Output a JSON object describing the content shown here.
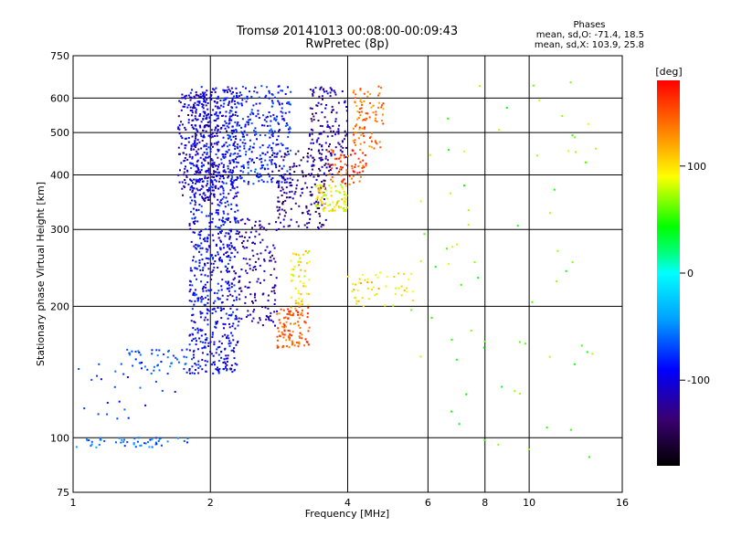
{
  "chart_data": {
    "type": "scatter",
    "title_line1": "Tromsø 20141013 00:08:00-00:09:43",
    "title_line2": "RwPretec (8p)",
    "xlabel": "Frequency [MHz]",
    "ylabel": "Stationary phase Virtual Height [km]",
    "x_scale": "log",
    "y_scale": "log",
    "xlim": [
      1,
      16
    ],
    "ylim": [
      75,
      750
    ],
    "x_ticks": [
      1,
      2,
      4,
      6,
      8,
      10,
      16
    ],
    "y_ticks": [
      75,
      100,
      200,
      300,
      400,
      500,
      600,
      750
    ],
    "grid": true,
    "stats": {
      "heading": "Phases",
      "line_o": "mean, sd,O: -71.4, 18.5",
      "line_x": "mean, sd,X: 103.9, 25.8"
    },
    "colorbar": {
      "label": "[deg]",
      "ticks": [
        100,
        0,
        -100
      ],
      "range": [
        -180,
        180
      ]
    },
    "series": [
      {
        "clusters": [
          {
            "x": [
              1.8,
              2.3
            ],
            "y": [
              140,
              640
            ],
            "phase": -95,
            "n": 900
          },
          {
            "x": [
              1.7,
              2.1
            ],
            "y": [
              350,
              620
            ],
            "phase": -110,
            "n": 250
          },
          {
            "x": [
              2.2,
              3.0
            ],
            "y": [
              380,
              640
            ],
            "phase": -85,
            "n": 320
          },
          {
            "x": [
              2.3,
              2.8
            ],
            "y": [
              180,
              320
            ],
            "phase": -120,
            "n": 150
          },
          {
            "x": [
              2.8,
              3.6
            ],
            "y": [
              300,
              460
            ],
            "phase": -130,
            "n": 180
          },
          {
            "x": [
              3.3,
              4.0
            ],
            "y": [
              400,
              640
            ],
            "phase": -120,
            "n": 150
          },
          {
            "x": [
              3.4,
              4.0
            ],
            "y": [
              330,
              380
            ],
            "phase": 95,
            "n": 90
          },
          {
            "x": [
              3.6,
              4.4
            ],
            "y": [
              380,
              460
            ],
            "phase": 155,
            "n": 70
          },
          {
            "x": [
              4.1,
              4.8
            ],
            "y": [
              460,
              640
            ],
            "phase": 140,
            "n": 90
          },
          {
            "x": [
              2.8,
              3.3
            ],
            "y": [
              160,
              200
            ],
            "phase": 150,
            "n": 110
          },
          {
            "x": [
              3.0,
              3.3
            ],
            "y": [
              200,
              270
            ],
            "phase": 95,
            "n": 50
          },
          {
            "x": [
              4.0,
              5.6
            ],
            "y": [
              200,
              240
            ],
            "phase": 100,
            "n": 50
          },
          {
            "x": [
              1.3,
              1.9
            ],
            "y": [
              140,
              160
            ],
            "phase": -70,
            "n": 50
          },
          {
            "x": [
              1.0,
              1.8
            ],
            "y": [
              95,
              100
            ],
            "phase": -60,
            "n": 50
          },
          {
            "x": [
              1.0,
              1.7
            ],
            "y": [
              110,
              150
            ],
            "phase": -80,
            "n": 25
          },
          {
            "x": [
              5.5,
              14.0
            ],
            "y": [
              90,
              660
            ],
            "phase": 60,
            "n": 70
          }
        ]
      }
    ]
  }
}
